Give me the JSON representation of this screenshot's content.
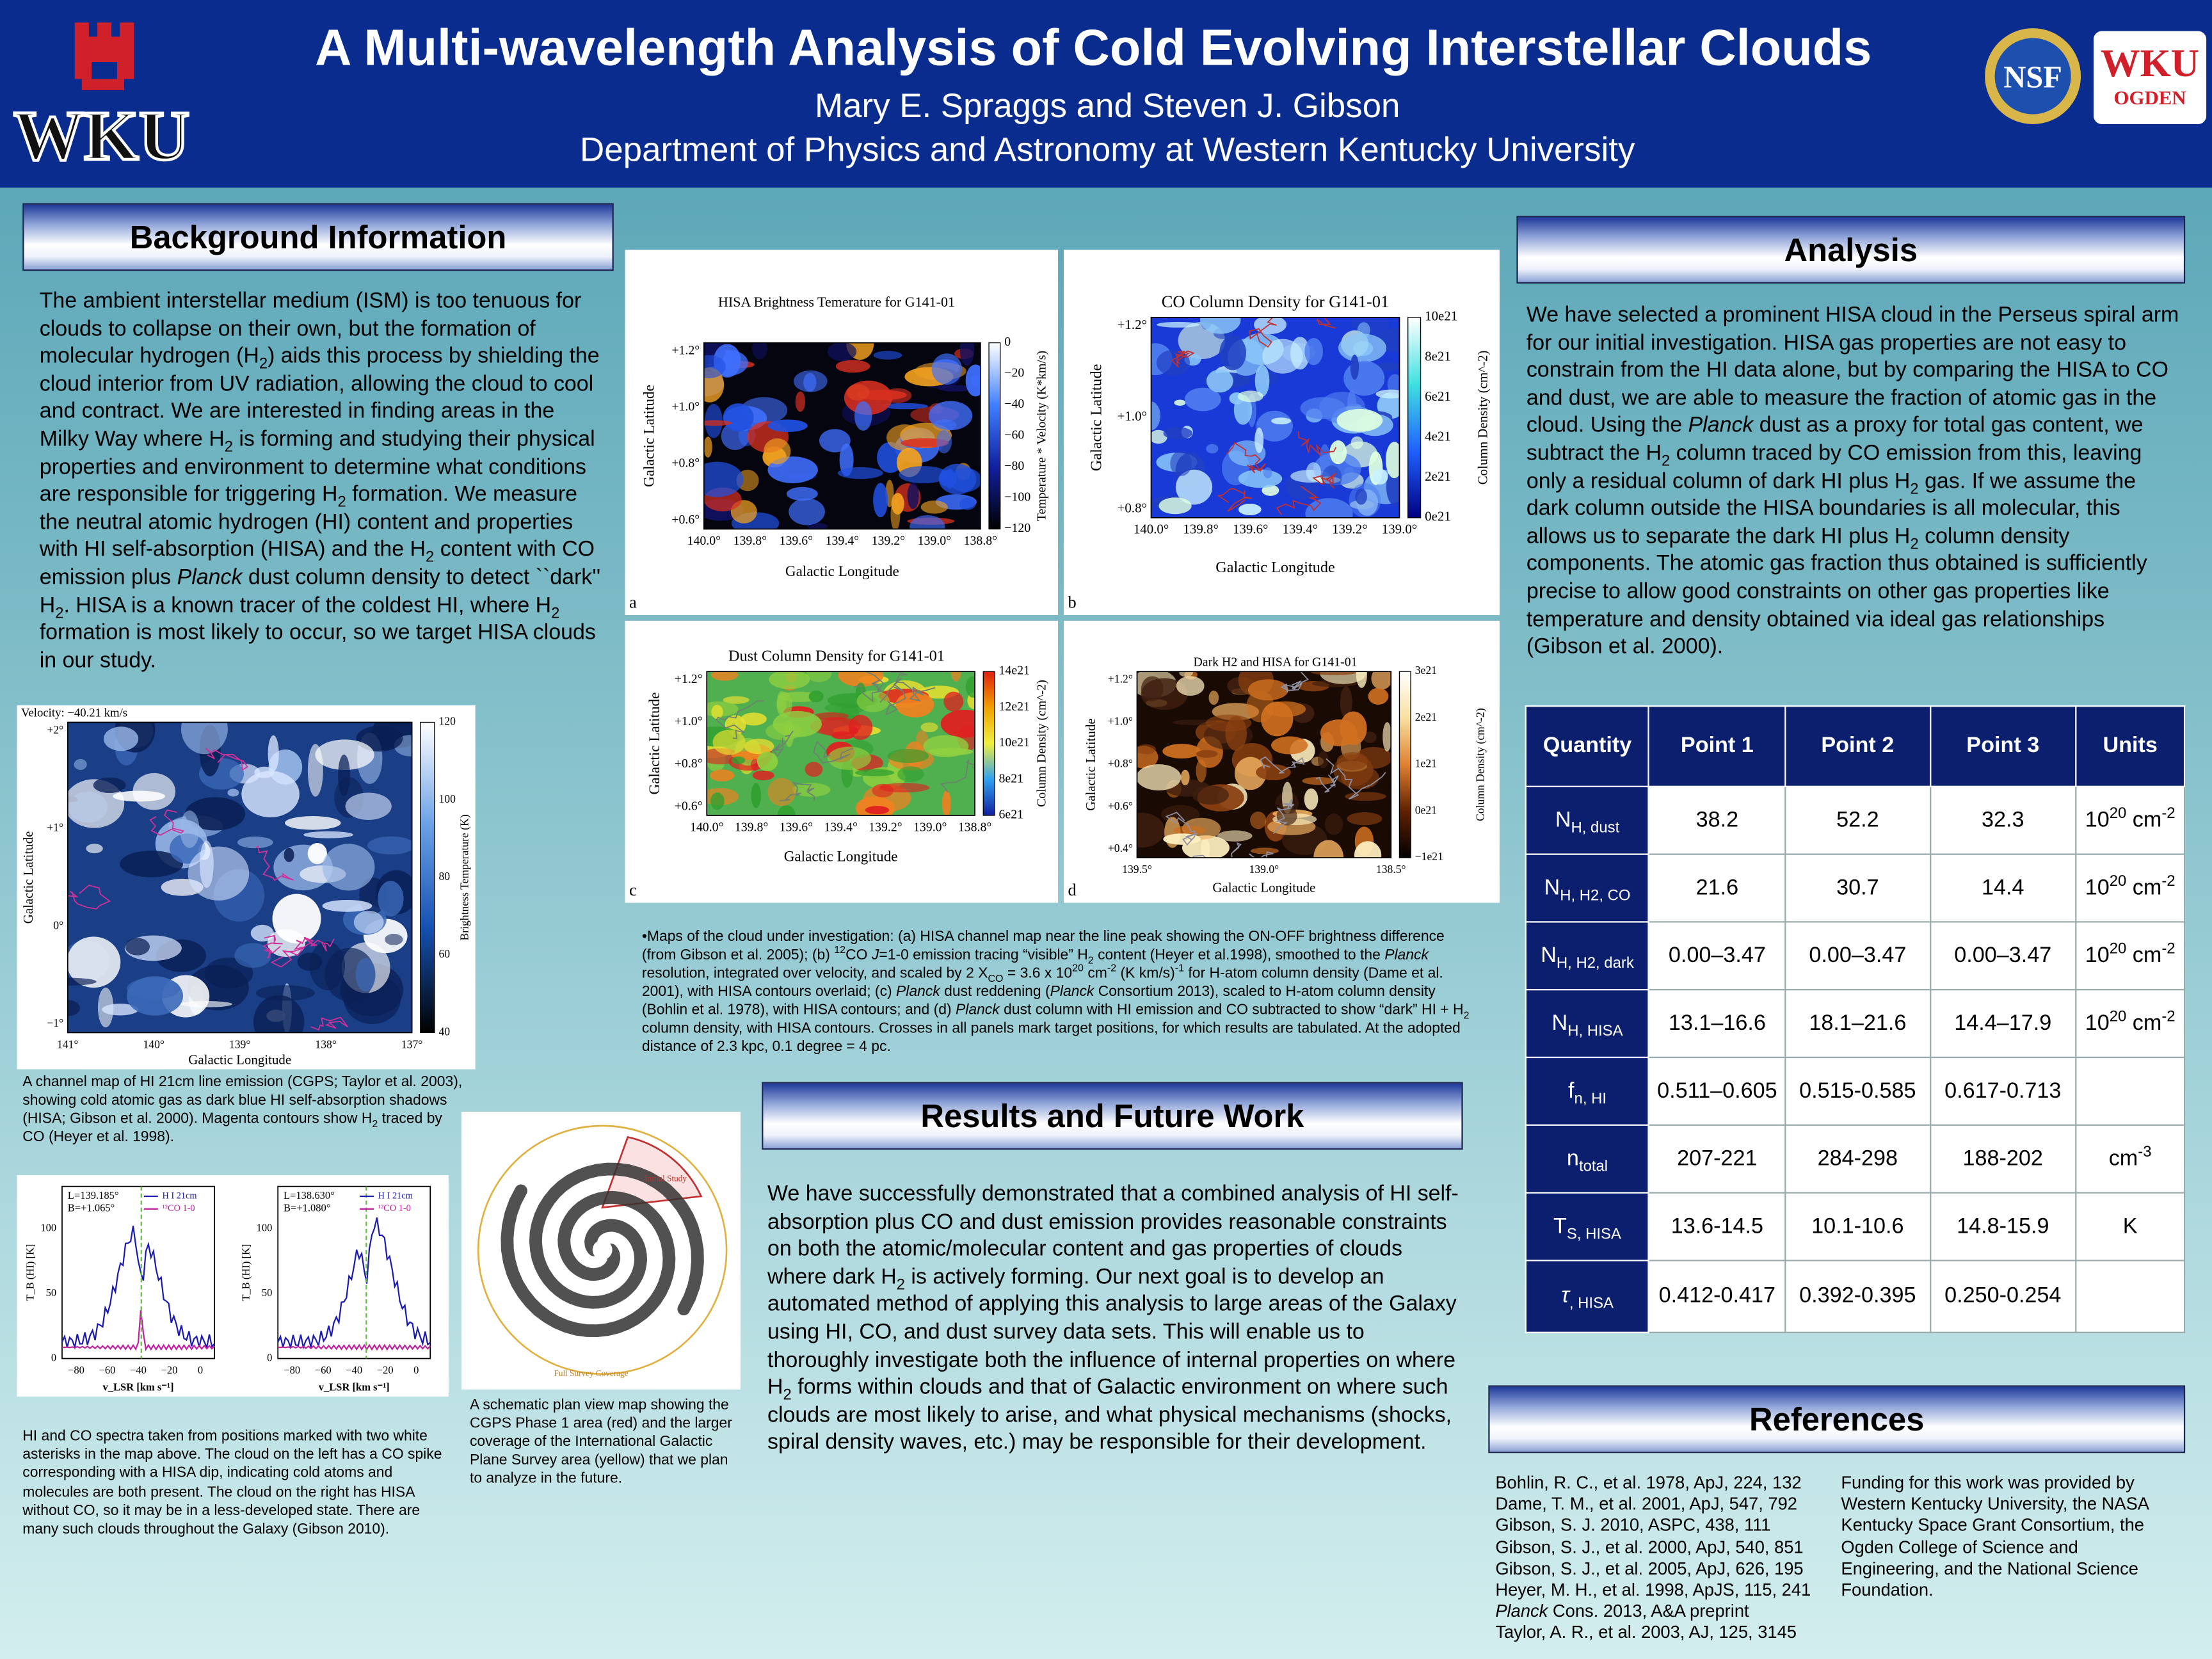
{
  "header": {
    "title": "A Multi-wavelength Analysis of Cold Evolving Interstellar Clouds",
    "authors": "Mary E. Spraggs and Steven J. Gibson",
    "department": "Department of Physics and Astronomy at Western Kentucky University",
    "logo_left": "WKU",
    "logo_nsf": "NSF",
    "logo_right": "WKU",
    "logo_right_sub": "OGDEN"
  },
  "background": {
    "heading": "Background Information",
    "body": "The ambient interstellar medium (ISM) is too tenuous for clouds to collapse on their own, but the formation of molecular hydrogen (H<sub>2</sub>) aids this process by shielding the cloud interior from UV radiation, allowing the cloud to cool and contract.  We are interested in finding areas in the Milky Way where H<sub>2</sub> is forming and studying their physical properties and environment to determine what conditions are responsible for triggering H<sub>2</sub> formation.  We measure the neutral atomic hydrogen (HI) content and properties with HI self-absorption (HISA) and the H<sub>2</sub> content with CO emission plus <i>Planck</i> dust column density to detect ``dark'' H<sub>2</sub>.  HISA is a known tracer of the coldest HI, where H<sub>2</sub> formation is most likely to occur, so we target HISA clouds in our study."
  },
  "channel_map": {
    "title": "Velocity: −40.21 km/s",
    "xlabel": "Galactic Longitude",
    "ylabel": "Galactic Latitude",
    "cbar_label": "Brightness Temperature (K)",
    "xticks": [
      "141°",
      "140°",
      "139°",
      "138°",
      "137°"
    ],
    "yticks": [
      "+2°",
      "+1°",
      "0°",
      "−1°"
    ],
    "cbar_ticks": [
      "120",
      "100",
      "80",
      "60",
      "40"
    ],
    "caption": "A channel map of HI 21cm line emission (CGPS; Taylor et al. 2003), showing cold atomic gas as dark blue HI self-absorption shadows (HISA; Gibson et al. 2000).  Magenta contours show H<sub>2</sub> traced by CO (Heyer et al. 1998)."
  },
  "spectra": {
    "panels": [
      {
        "l": "L=139.185°",
        "b": "B=+1.065°"
      },
      {
        "l": "L=138.630°",
        "b": "B=+1.080°"
      }
    ],
    "legend_hi": "H I 21cm",
    "legend_co": "¹²CO 1-0",
    "ylabel": "T_B (HI) [K]",
    "xlabel": "v_LSR [km s⁻¹]",
    "yticks": [
      "100",
      "50",
      "0"
    ],
    "xticks": [
      "−80",
      "−60",
      "−40",
      "−20",
      "0"
    ],
    "caption": "HI and CO spectra taken from positions marked with two white asterisks in the map above.  The cloud on the left has a CO spike corresponding with a HISA dip, indicating cold atoms and molecules are both present.  The cloud on the right has HISA without CO, so it may be in a less-developed state.  There are many such clouds throughout the Galaxy (Gibson 2010)."
  },
  "schematic": {
    "label_initial": "Initial Study",
    "label_full": "Full Survey Coverage",
    "caption": "A schematic  plan view map showing the CGPS Phase 1 area (red) and the larger coverage of the International Galactic Plane Survey area (yellow) that we plan to analyze in the future."
  },
  "maps": {
    "a": {
      "letter": "a",
      "title": "HISA Brightness Temerature for G141-01",
      "xlabel": "Galactic Longitude",
      "ylabel": "Galactic Latitude",
      "cbar_label": "Temperature * Velocity (K*km/s)",
      "xticks": [
        "140.0°",
        "139.8°",
        "139.6°",
        "139.4°",
        "139.2°",
        "139.0°",
        "138.8°"
      ],
      "yticks": [
        "+1.2°",
        "+1.0°",
        "+0.8°",
        "+0.6°"
      ],
      "cbar_ticks": [
        "0",
        "−20",
        "−40",
        "−60",
        "−80",
        "−100",
        "−120"
      ]
    },
    "b": {
      "letter": "b",
      "title": "CO Column Density for G141-01",
      "xlabel": "Galactic Longitude",
      "ylabel": "Galactic Latitude",
      "cbar_label": "Column Density (cm^-2)",
      "xticks": [
        "140.0°",
        "139.8°",
        "139.6°",
        "139.4°",
        "139.2°",
        "139.0°"
      ],
      "yticks": [
        "+1.2°",
        "+1.0°",
        "+0.8°"
      ],
      "cbar_ticks": [
        "10e21",
        "8e21",
        "6e21",
        "4e21",
        "2e21",
        "0e21"
      ]
    },
    "c": {
      "letter": "c",
      "title": "Dust Column Density for G141-01",
      "xlabel": "Galactic Longitude",
      "ylabel": "Galactic Latitude",
      "cbar_label": "Column Density (cm^-2)",
      "xticks": [
        "140.0°",
        "139.8°",
        "139.6°",
        "139.4°",
        "139.2°",
        "139.0°",
        "138.8°"
      ],
      "yticks": [
        "+1.2°",
        "+1.0°",
        "+0.8°",
        "+0.6°"
      ],
      "cbar_ticks": [
        "14e21",
        "12e21",
        "10e21",
        "8e21",
        "6e21"
      ]
    },
    "d": {
      "letter": "d",
      "title": "Dark H2 and HISA for G141-01",
      "xlabel": "Galactic Longitude",
      "ylabel": "Galactic Latitude",
      "cbar_label": "Column Density (cm^-2)",
      "xticks": [
        "139.5°",
        "139.0°",
        "138.5°"
      ],
      "yticks": [
        "+1.2°",
        "+1.0°",
        "+0.8°",
        "+0.6°",
        "+0.4°"
      ],
      "cbar_ticks": [
        "3e21",
        "2e21",
        "1e21",
        "0e21",
        "−1e21"
      ]
    }
  },
  "maps_caption": "•Maps of the cloud under investigation: (a) HISA channel map near the line peak showing the ON-OFF brightness difference (from Gibson et al. 2005); (b) <sup>12</sup>CO <i>J</i>=1-0 emission tracing “visible” H<sub>2</sub> content (Heyer et al.1998), smoothed to the <i>Planck</i> resolution, integrated over velocity, and scaled by 2 X<sub>CO</sub> = 3.6 x 10<sup>20</sup> cm<sup>-2</sup> (K km/s)<sup>-1</sup> for H-atom column density (Dame et al. 2001), with HISA contours overlaid; (c) <i>Planck</i> dust reddening (<i>Planck</i> Consortium 2013), scaled to H-atom column density (Bohlin et al. 1978), with HISA contours; and (d) <i>Planck</i> dust column with HI emission and CO subtracted to show “dark” HI + H<sub>2</sub> column density, with HISA contours.  Crosses in all panels mark target positions, for which results are tabulated.  At the adopted distance of 2.3 kpc, 0.1 degree = 4 pc.",
  "results": {
    "heading": "Results and Future Work",
    "body": "We have successfully demonstrated that a combined analysis of HI self-absorption plus CO and dust emission provides reasonable constraints on both the atomic/molecular content and gas properties of clouds where dark H<sub>2</sub> is actively forming.  Our next goal is to develop an automated method of applying this analysis to large areas of the Galaxy using HI, CO, and dust survey data sets.  This will enable us to thoroughly investigate both the influence of internal properties on where H<sub>2</sub> forms within clouds and that of Galactic environment on where such clouds are most likely to arise, and what physical mechanisms (shocks, spiral density waves, etc.) may be responsible for their development."
  },
  "analysis": {
    "heading": "Analysis",
    "body": "We have selected a prominent HISA cloud in the Perseus spiral arm for our initial investigation.  HISA gas properties are not easy to constrain from the HI data alone, but by comparing the HISA to CO and dust, we are able to measure the fraction of atomic gas in the cloud.  Using the <i>Planck</i> dust as a proxy for total gas content, we subtract the H<sub>2</sub> column traced by CO emission from this, leaving only a residual column of dark HI plus H<sub>2</sub> gas.  If we assume the dark column outside the HISA boundaries is all molecular, this allows us to separate the dark HI plus H<sub>2</sub> column density components.  The atomic gas fraction thus obtained is sufficiently precise to allow good constraints on other gas properties like temperature and density obtained via ideal gas relationships (Gibson et al. 2000)."
  },
  "table": {
    "header": [
      "Quantity",
      "Point 1",
      "Point 2",
      "Point 3",
      "Units"
    ],
    "rows": [
      [
        "N<sub>H, dust</sub>",
        "38.2",
        "52.2",
        "32.3",
        "10<sup>20</sup> cm<sup>-2</sup>"
      ],
      [
        "N<sub>H, H2, CO</sub>",
        "21.6",
        "30.7",
        "14.4",
        "10<sup>20</sup> cm<sup>-2</sup>"
      ],
      [
        "N<sub>H, H2, dark</sub>",
        "0.00–3.47",
        "0.00–3.47",
        "0.00–3.47",
        "10<sup>20</sup> cm<sup>-2</sup>"
      ],
      [
        "N<sub>H, HISA</sub>",
        "13.1–16.6",
        "18.1–21.6",
        "14.4–17.9",
        "10<sup>20</sup> cm<sup>-2</sup>"
      ],
      [
        "f<sub>n, HI</sub>",
        "0.511–0.605",
        "0.515-0.585",
        "0.617-0.713",
        null
      ],
      [
        "n<sub>total</sub>",
        "207-221",
        "284-298",
        "188-202",
        "cm<sup>-3</sup>"
      ],
      [
        "T<sub>S, HISA</sub>",
        "13.6-14.5",
        "10.1-10.6",
        "14.8-15.9",
        "K"
      ],
      [
        "<i>τ</i><sub>, HISA</sub>",
        "0.412-0.417",
        "0.392-0.395",
        "0.250-0.254",
        null
      ]
    ]
  },
  "references": {
    "heading": "References",
    "items": [
      "Bohlin, R. C., et al. 1978, ApJ, 224, 132",
      "Dame, T. M., et al. 2001, ApJ, 547, 792",
      "Gibson, S. J. 2010, ASPC, 438, 111",
      "Gibson, S. J., et al. 2000, ApJ, 540, 851",
      "Gibson, S. J., et al. 2005, ApJ, 626, 195",
      "Heyer, M. H., et al. 1998, ApJS, 115, 241",
      "<i>Planck</i> Cons. 2013, A&amp;A preprint",
      "Taylor, A. R., et al. 2003, AJ, 125, 3145"
    ],
    "funding": "Funding for this work was provided by Western Kentucky University, the NASA Kentucky Space Grant Consortium, the Ogden College of Science and Engineering, and the National Science Foundation."
  }
}
